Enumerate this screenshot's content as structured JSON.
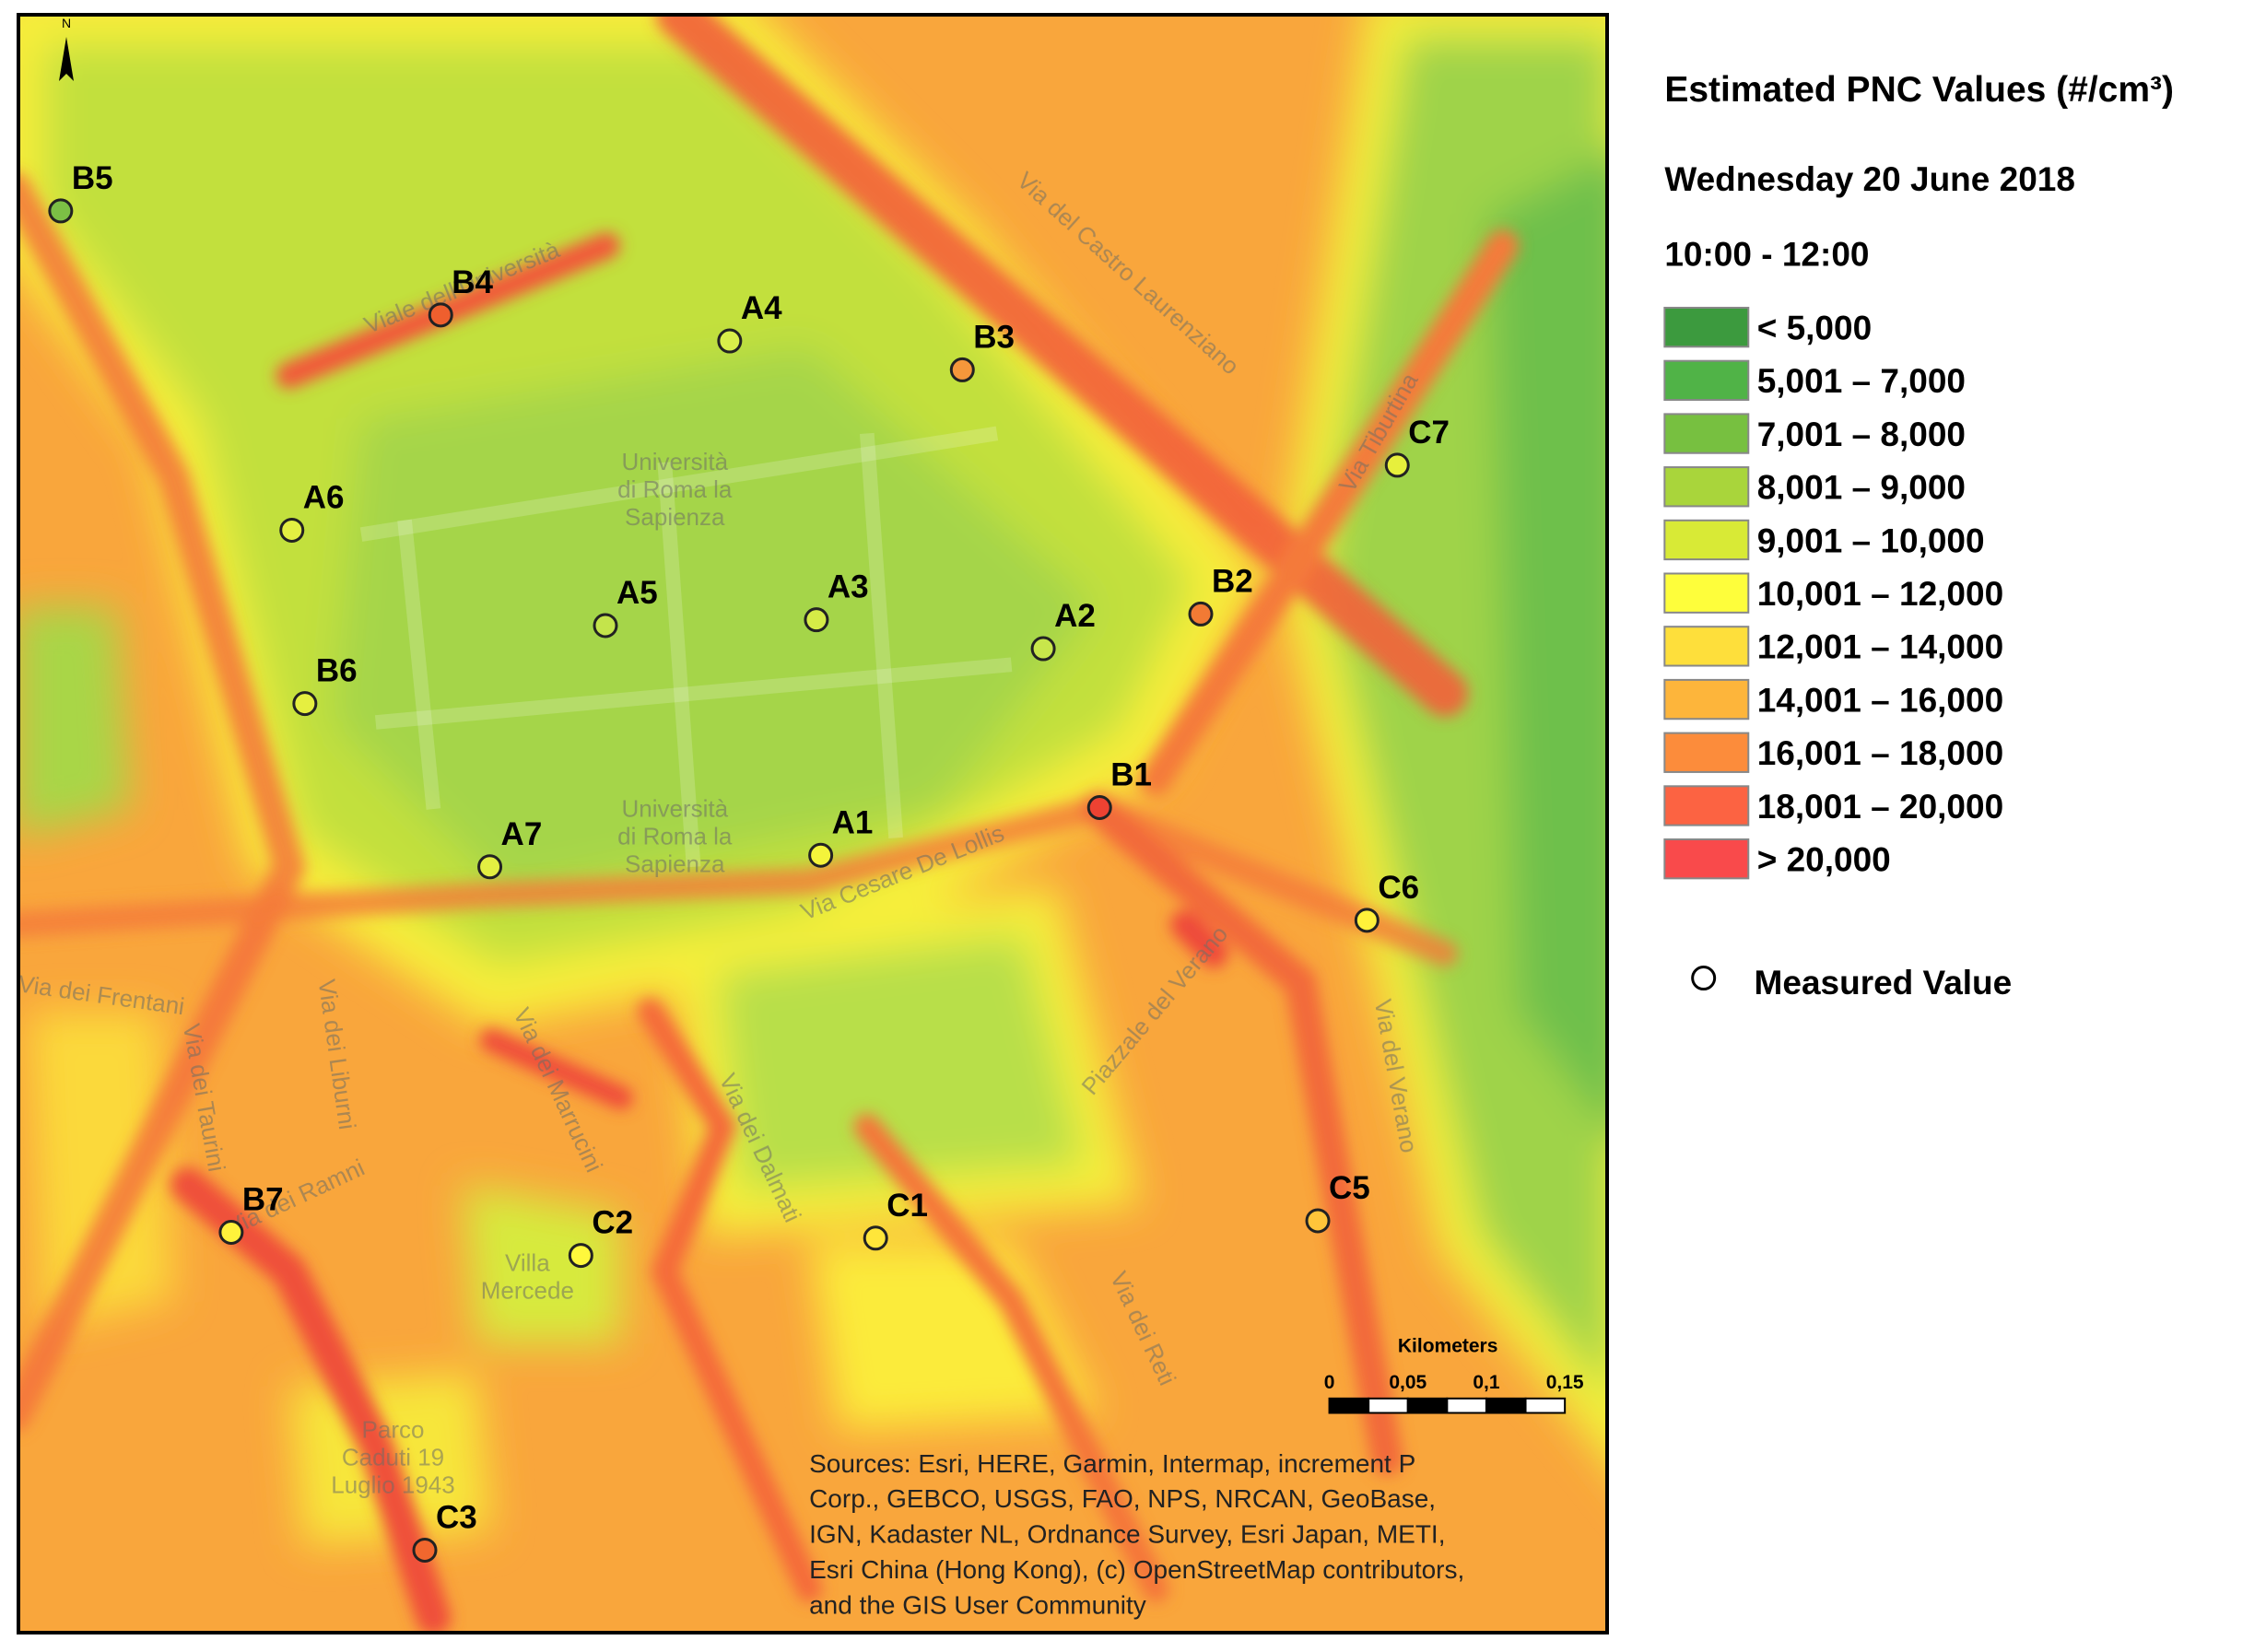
{
  "map": {
    "north": "N",
    "stations": [
      {
        "label": "B5",
        "color": "#7cbf45"
      },
      {
        "label": "B4",
        "color": "#ef5f2e"
      },
      {
        "label": "A4",
        "color": "#d9ee4a"
      },
      {
        "label": "B3",
        "color": "#f5973b"
      },
      {
        "label": "C7",
        "color": "#e7f03c"
      },
      {
        "label": "A6",
        "color": "#e4ef42"
      },
      {
        "label": "A5",
        "color": "#c4e44b"
      },
      {
        "label": "A3",
        "color": "#d6ec47"
      },
      {
        "label": "A2",
        "color": "#c8e64b"
      },
      {
        "label": "B2",
        "color": "#f27a34"
      },
      {
        "label": "B6",
        "color": "#e6ef40"
      },
      {
        "label": "B1",
        "color": "#ee4232"
      },
      {
        "label": "A7",
        "color": "#e3ef42"
      },
      {
        "label": "A1",
        "color": "#f4f43b"
      },
      {
        "label": "C6",
        "color": "#fff13a"
      },
      {
        "label": "B7",
        "color": "#fff23b"
      },
      {
        "label": "C2",
        "color": "#fff83c"
      },
      {
        "label": "C1",
        "color": "#ffe63a"
      },
      {
        "label": "C5",
        "color": "#ffc53a"
      },
      {
        "label": "C3",
        "color": "#f1672e"
      }
    ],
    "street_labels": [
      [
        "Viale dell'Università"
      ],
      [
        "Via del Castro Laurenziano"
      ],
      [
        "Via Tiburtina"
      ],
      [
        "Via Cesare De Lollis"
      ],
      [
        "Università",
        "di Roma la",
        "Sapienza"
      ],
      [
        "Piazzale del Verano"
      ],
      [
        "Via dei Dalmati"
      ],
      [
        "Via dei Marrucini"
      ],
      [
        "Via del Verano"
      ],
      [
        "Via dei Reti"
      ],
      [
        "Villa",
        "Mercede"
      ],
      [
        "Parco",
        "Caduti 19",
        "Luglio 1943"
      ],
      [
        "Via dei Frentani"
      ],
      [
        "Via dei Taurini"
      ],
      [
        "Via dei Ramni"
      ],
      [
        "Via dei Liburni"
      ]
    ],
    "scale_bar": {
      "unit": "Kilometers",
      "labels": [
        "0",
        "0,05",
        "0,1",
        "0,15"
      ]
    },
    "sources": [
      "Sources: Esri, HERE, Garmin, Intermap, increment P",
      "Corp., GEBCO, USGS, FAO, NPS, NRCAN, GeoBase,",
      "IGN, Kadaster NL, Ordnance Survey, Esri Japan, METI,",
      "Esri China (Hong Kong), (c) OpenStreetMap contributors,",
      "and the GIS User Community"
    ]
  },
  "legend": {
    "title": "Estimated PNC Values (#/cm³)",
    "date": "Wednesday 20 June 2018",
    "time": "10:00 - 12:00",
    "classes": [
      {
        "label": "< 5,000",
        "color": "#3c9a3e"
      },
      {
        "label": "5,001 – 7,000",
        "color": "#50b347"
      },
      {
        "label": "7,001 – 8,000",
        "color": "#77c040"
      },
      {
        "label": "8,001 – 9,000",
        "color": "#a9d53b"
      },
      {
        "label": "9,001 – 10,000",
        "color": "#d8ea36"
      },
      {
        "label": "10,001 – 12,000",
        "color": "#fefe3b"
      },
      {
        "label": "12,001 – 14,000",
        "color": "#fedf3b"
      },
      {
        "label": "14,001 – 16,000",
        "color": "#fdb53b"
      },
      {
        "label": "16,001 – 18,000",
        "color": "#fc8c3b"
      },
      {
        "label": "18,001 – 20,000",
        "color": "#fc6342"
      },
      {
        "label": "> 20,000",
        "color": "#f94a4b"
      }
    ],
    "measured": "Measured Value"
  }
}
